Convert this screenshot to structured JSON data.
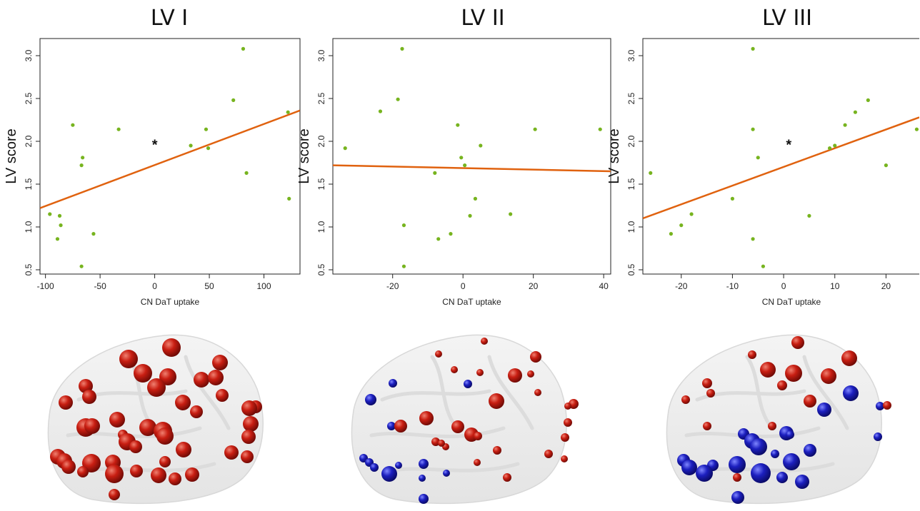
{
  "colors": {
    "point": "#77b41f",
    "fit_line": "#e0620f",
    "brain_shell": "#e9e9e9",
    "red_node": "#c81e12",
    "blue_node": "#1c1fbf"
  },
  "chart_data": [
    {
      "type": "scatter",
      "title": "LV I",
      "xlabel": "CN DaT uptake",
      "ylabel": "LV score",
      "xlim": [
        -105,
        133
      ],
      "ylim": [
        0.45,
        3.2
      ],
      "xticks": [
        -100,
        -50,
        0,
        50,
        100
      ],
      "xtick_labels": [
        "-100",
        "-50",
        "0",
        "50",
        "100"
      ],
      "yticks": [
        0.5,
        1.0,
        1.5,
        2.0,
        2.5,
        3.0
      ],
      "ytick_labels": [
        "0.5",
        "1.0",
        "1.5",
        "2.0",
        "2.5",
        "3.0"
      ],
      "significance": "*",
      "significance_at": [
        0,
        1.98
      ],
      "fit_line": [
        [
          -105,
          1.22
        ],
        [
          133,
          2.36
        ]
      ],
      "points": [
        [
          -96,
          1.15
        ],
        [
          -87,
          1.13
        ],
        [
          -89,
          0.86
        ],
        [
          -86,
          1.02
        ],
        [
          -75,
          2.19
        ],
        [
          -67,
          1.72
        ],
        [
          -66,
          1.81
        ],
        [
          -67,
          0.54
        ],
        [
          -56,
          0.92
        ],
        [
          -33,
          2.14
        ],
        [
          33,
          1.95
        ],
        [
          47,
          2.14
        ],
        [
          49,
          1.92
        ],
        [
          72,
          2.48
        ],
        [
          81,
          3.08
        ],
        [
          84,
          1.63
        ],
        [
          122,
          2.34
        ],
        [
          123,
          1.33
        ]
      ]
    },
    {
      "type": "scatter",
      "title": "LV II",
      "xlabel": "CN DaT uptake",
      "ylabel": "LV score",
      "xlim": [
        -37,
        42
      ],
      "ylim": [
        0.45,
        3.2
      ],
      "xticks": [
        -20,
        0,
        20,
        40
      ],
      "xtick_labels": [
        "-20",
        "0",
        "20",
        "40"
      ],
      "yticks": [
        0.5,
        1.0,
        1.5,
        2.0,
        2.5,
        3.0
      ],
      "ytick_labels": [
        "0.5",
        "1.0",
        "1.5",
        "2.0",
        "2.5",
        "3.0"
      ],
      "significance": "",
      "fit_line": [
        [
          -37,
          1.72
        ],
        [
          42,
          1.65
        ]
      ],
      "points": [
        [
          -33.5,
          1.92
        ],
        [
          -23.5,
          2.35
        ],
        [
          -18.5,
          2.49
        ],
        [
          -17.3,
          3.08
        ],
        [
          -16.8,
          1.02
        ],
        [
          -16.8,
          0.54
        ],
        [
          -8,
          1.63
        ],
        [
          -7,
          0.86
        ],
        [
          -3.5,
          0.92
        ],
        [
          -1.5,
          2.19
        ],
        [
          -0.5,
          1.81
        ],
        [
          0.5,
          1.72
        ],
        [
          2,
          1.13
        ],
        [
          3.5,
          1.33
        ],
        [
          5,
          1.95
        ],
        [
          13.5,
          1.15
        ],
        [
          20.5,
          2.14
        ],
        [
          39,
          2.14
        ]
      ]
    },
    {
      "type": "scatter",
      "title": "LV III",
      "xlabel": "CN DaT uptake",
      "ylabel": "LV score",
      "xlim": [
        -27.5,
        26.5
      ],
      "ylim": [
        0.45,
        3.2
      ],
      "xticks": [
        -20,
        -10,
        0,
        10,
        20
      ],
      "xtick_labels": [
        "-20",
        "-10",
        "0",
        "10",
        "20"
      ],
      "yticks": [
        0.5,
        1.0,
        1.5,
        2.0,
        2.5,
        3.0
      ],
      "ytick_labels": [
        "0.5",
        "1.0",
        "1.5",
        "2.0",
        "2.5",
        "3.0"
      ],
      "significance": "*",
      "significance_at": [
        1,
        1.98
      ],
      "fit_line": [
        [
          -27.5,
          1.1
        ],
        [
          26.5,
          2.28
        ]
      ],
      "points": [
        [
          -26,
          1.63
        ],
        [
          -22,
          0.92
        ],
        [
          -20,
          1.02
        ],
        [
          -18,
          1.15
        ],
        [
          -10,
          1.33
        ],
        [
          -6,
          3.08
        ],
        [
          -6,
          2.14
        ],
        [
          -6,
          0.86
        ],
        [
          -5,
          1.81
        ],
        [
          -4,
          0.54
        ],
        [
          5,
          1.13
        ],
        [
          9,
          1.92
        ],
        [
          10,
          1.95
        ],
        [
          12,
          2.19
        ],
        [
          14,
          2.34
        ],
        [
          16.5,
          2.48
        ],
        [
          20,
          1.72
        ],
        [
          26,
          2.14
        ]
      ]
    }
  ],
  "brains": [
    {
      "nodes": [
        [
          "red",
          240,
          487,
          13
        ],
        [
          "red",
          180,
          503,
          13
        ],
        [
          "red",
          308,
          508,
          11
        ],
        [
          "red",
          200,
          523,
          13
        ],
        [
          "red",
          235,
          528,
          12
        ],
        [
          "red",
          282,
          532,
          11
        ],
        [
          "red",
          302,
          529,
          11
        ],
        [
          "red",
          120,
          541,
          10
        ],
        [
          "red",
          219,
          543,
          13
        ],
        [
          "red",
          125,
          556,
          10
        ],
        [
          "red",
          311,
          554,
          9
        ],
        [
          "red",
          92,
          564,
          10
        ],
        [
          "red",
          256,
          564,
          11
        ],
        [
          "red",
          358,
          570,
          9
        ],
        [
          "red",
          349,
          572,
          11
        ],
        [
          "red",
          275,
          577,
          9
        ],
        [
          "red",
          164,
          588,
          11
        ],
        [
          "red",
          351,
          594,
          11
        ],
        [
          "red",
          120,
          599,
          13
        ],
        [
          "red",
          129,
          597,
          11
        ],
        [
          "red",
          207,
          599,
          12
        ],
        [
          "red",
          228,
          604,
          13
        ],
        [
          "red",
          231,
          611,
          12
        ],
        [
          "red",
          172,
          609,
          7
        ],
        [
          "red",
          178,
          619,
          12
        ],
        [
          "red",
          348,
          612,
          10
        ],
        [
          "red",
          190,
          626,
          9
        ],
        [
          "red",
          257,
          630,
          11
        ],
        [
          "red",
          324,
          634,
          10
        ],
        [
          "red",
          81,
          640,
          11
        ],
        [
          "red",
          90,
          646,
          11
        ],
        [
          "red",
          96,
          654,
          10
        ],
        [
          "red",
          128,
          649,
          13
        ],
        [
          "red",
          158,
          648,
          11
        ],
        [
          "red",
          231,
          647,
          8
        ],
        [
          "red",
          346,
          640,
          9
        ],
        [
          "red",
          116,
          661,
          8
        ],
        [
          "red",
          160,
          664,
          13
        ],
        [
          "red",
          191,
          660,
          9
        ],
        [
          "red",
          222,
          666,
          11
        ],
        [
          "red",
          245,
          671,
          9
        ],
        [
          "red",
          269,
          665,
          10
        ],
        [
          "red",
          160,
          693,
          8
        ]
      ]
    },
    {
      "nodes": [
        [
          "red",
          678,
          478,
          5
        ],
        [
          "red",
          614,
          496,
          5
        ],
        [
          "red",
          750,
          500,
          8
        ],
        [
          "red",
          636,
          518,
          5
        ],
        [
          "red",
          672,
          522,
          5
        ],
        [
          "red",
          721,
          526,
          10
        ],
        [
          "red",
          743,
          524,
          5
        ],
        [
          "blue",
          550,
          537,
          6
        ],
        [
          "blue",
          655,
          538,
          6
        ],
        [
          "red",
          753,
          550,
          5
        ],
        [
          "blue",
          519,
          560,
          8
        ],
        [
          "red",
          695,
          562,
          11
        ],
        [
          "red",
          803,
          566,
          7
        ],
        [
          "red",
          795,
          569,
          5
        ],
        [
          "red",
          597,
          586,
          10
        ],
        [
          "red",
          795,
          592,
          6
        ],
        [
          "blue",
          548,
          597,
          6
        ],
        [
          "red",
          561,
          597,
          9
        ],
        [
          "red",
          641,
          598,
          9
        ],
        [
          "red",
          660,
          609,
          10
        ],
        [
          "red",
          669,
          611,
          6
        ],
        [
          "red",
          791,
          613,
          6
        ],
        [
          "red",
          610,
          619,
          6
        ],
        [
          "red",
          624,
          626,
          5
        ],
        [
          "red",
          618,
          621,
          5
        ],
        [
          "red",
          696,
          631,
          6
        ],
        [
          "red",
          768,
          636,
          6
        ],
        [
          "blue",
          509,
          642,
          6
        ],
        [
          "blue",
          517,
          648,
          6
        ],
        [
          "blue",
          524,
          655,
          6
        ],
        [
          "blue",
          558,
          652,
          5
        ],
        [
          "blue",
          593,
          650,
          7
        ],
        [
          "red",
          668,
          648,
          5
        ],
        [
          "red",
          790,
          643,
          5
        ],
        [
          "blue",
          545,
          664,
          11
        ],
        [
          "blue",
          625,
          663,
          5
        ],
        [
          "blue",
          591,
          670,
          5
        ],
        [
          "red",
          710,
          669,
          6
        ],
        [
          "blue",
          593,
          699,
          7
        ]
      ]
    },
    {
      "nodes": [
        [
          "red",
          1117,
          480,
          9
        ],
        [
          "red",
          1053,
          497,
          6
        ],
        [
          "red",
          1189,
          502,
          11
        ],
        [
          "red",
          1079,
          518,
          6
        ],
        [
          "red",
          1075,
          518,
          11
        ],
        [
          "red",
          1111,
          523,
          12
        ],
        [
          "red",
          1160,
          527,
          11
        ],
        [
          "red",
          990,
          537,
          7
        ],
        [
          "red",
          1095,
          540,
          7
        ],
        [
          "red",
          995,
          551,
          6
        ],
        [
          "blue",
          1191,
          551,
          11
        ],
        [
          "red",
          960,
          560,
          6
        ],
        [
          "red",
          1134,
          562,
          9
        ],
        [
          "blue",
          1154,
          574,
          10
        ],
        [
          "blue",
          1232,
          569,
          6
        ],
        [
          "red",
          1242,
          568,
          6
        ],
        [
          "red",
          990,
          597,
          6
        ],
        [
          "red",
          1081,
          597,
          6
        ],
        [
          "blue",
          1041,
          608,
          8
        ],
        [
          "blue",
          1101,
          607,
          10
        ],
        [
          "blue",
          1106,
          609,
          6
        ],
        [
          "blue",
          1229,
          612,
          6
        ],
        [
          "blue",
          1053,
          618,
          11
        ],
        [
          "blue",
          1062,
          626,
          12
        ],
        [
          "blue",
          1134,
          631,
          9
        ],
        [
          "blue",
          1085,
          636,
          6
        ],
        [
          "blue",
          957,
          645,
          9
        ],
        [
          "blue",
          965,
          655,
          11
        ],
        [
          "blue",
          998,
          652,
          8
        ],
        [
          "blue",
          1032,
          651,
          12
        ],
        [
          "blue",
          1108,
          647,
          12
        ],
        [
          "blue",
          986,
          663,
          12
        ],
        [
          "red",
          1032,
          669,
          6
        ],
        [
          "blue",
          1065,
          663,
          14
        ],
        [
          "blue",
          1095,
          669,
          8
        ],
        [
          "blue",
          1123,
          675,
          10
        ],
        [
          "blue",
          1033,
          697,
          9
        ]
      ]
    }
  ]
}
